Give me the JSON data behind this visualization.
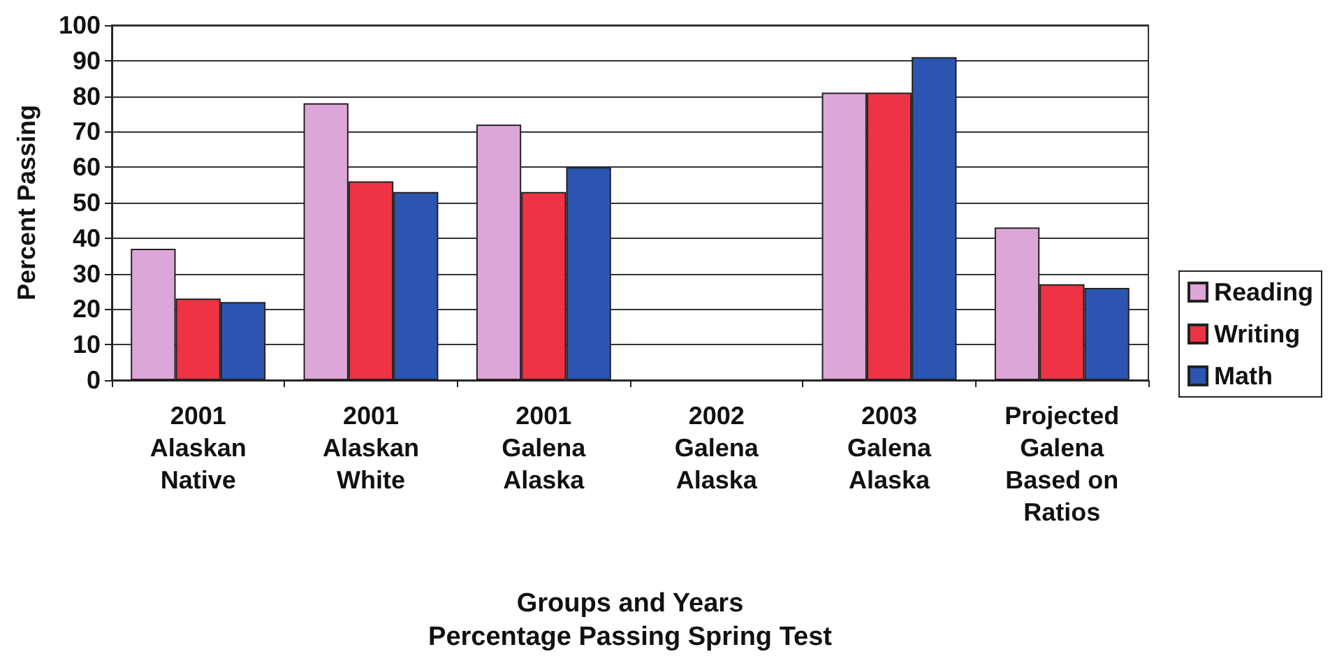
{
  "chart_data": {
    "type": "bar",
    "xlabel": "Groups and Years\nPercentage Passing Spring Test",
    "ylabel": "Percent Passing",
    "categories": [
      "2001\nAlaskan\nNative",
      "2001\nAlaskan\nWhite",
      "2001\nGalena\nAlaska",
      "2002\nGalena\nAlaska",
      "2003\nGalena\nAlaska",
      "Projected\nGalena\nBased on\nRatios"
    ],
    "series": [
      {
        "name": "Reading",
        "color": "#dda6d8",
        "values": [
          37,
          78,
          72,
          null,
          81,
          43
        ]
      },
      {
        "name": "Writing",
        "color": "#ee3344",
        "values": [
          23,
          56,
          53,
          null,
          81,
          27
        ]
      },
      {
        "name": "Math",
        "color": "#2b55b0",
        "values": [
          22,
          53,
          60,
          null,
          91,
          26
        ]
      }
    ],
    "ylim": [
      0,
      100
    ],
    "yticks": [
      0,
      10,
      20,
      30,
      40,
      50,
      60,
      70,
      80,
      90,
      100
    ],
    "grid": "y",
    "legend": "right"
  }
}
